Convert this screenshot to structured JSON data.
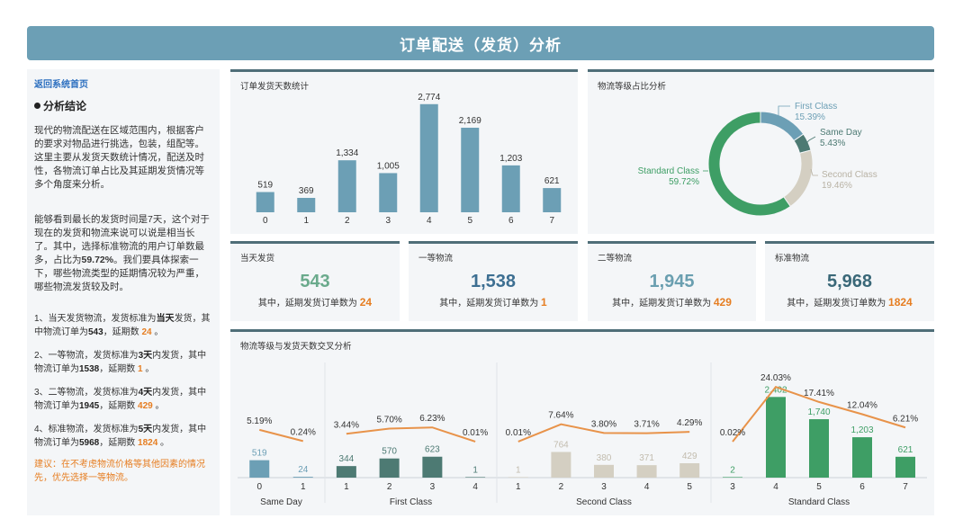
{
  "header": {
    "title": "订单配送（发货）分析"
  },
  "left": {
    "home_link": "返回系统首页",
    "section_title": "分析结论",
    "para1": "现代的物流配送在区域范围内，根据客户的要求对物品进行挑选，包装，组配等。这里主要从发货天数统计情况，配送及时性，各物流订单占比及其延期发货情况等多个角度来分析。",
    "para2_a": "能够看到最长的发货时间是7天，这个对于现在的发货和物流来说可以说是相当长了。其中，选择标准物流的用户订单数最多，占比为",
    "para2_pct": "59.72%",
    "para2_b": "。我们要具体探索一下，哪些物流类型的延期情况较为严重，哪些物流发货较及时。",
    "items": [
      {
        "a": "1、当天发货物流，发货标准为",
        "b": "当天",
        "c": "发货，其中物流订单为",
        "d": "543",
        "e": "，延期数 ",
        "f": "24",
        "g": " 。"
      },
      {
        "a": "2、一等物流，发货标准为",
        "b": "3天",
        "c": "内发货，其中物流订单为",
        "d": "1538",
        "e": "，延期数 ",
        "f": "1",
        "g": " 。"
      },
      {
        "a": "3、二等物流，发货标准为",
        "b": "4天",
        "c": "内发货，其中物流订单为",
        "d": "1945",
        "e": "，延期数 ",
        "f": "429",
        "g": " 。"
      },
      {
        "a": "4、标准物流，发货标准为",
        "b": "5天",
        "c": "内发货，其中物流订单为",
        "d": "5968",
        "e": "，延期数 ",
        "f": "1824",
        "g": " 。"
      }
    ],
    "advice": "建议：在不考虑物流价格等其他因素的情况先，优先选择一等物流。"
  },
  "bar_card": {
    "title": "订单发货天数统计"
  },
  "pie_card": {
    "title": "物流等级占比分析"
  },
  "kpis": [
    {
      "title": "当天发货",
      "value": "543",
      "sub": "其中，延期发货订单数为 ",
      "delay": "24",
      "value_color": "#6aaa8c"
    },
    {
      "title": "一等物流",
      "value": "1,538",
      "sub": "其中，延期发货订单数为 ",
      "delay": "1",
      "value_color": "#3d6f92"
    },
    {
      "title": "二等物流",
      "value": "1,945",
      "sub": "其中，延期发货订单数为 ",
      "delay": "429",
      "value_color": "#6a9fb0"
    },
    {
      "title": "标准物流",
      "value": "5,968",
      "sub": "其中，延期发货订单数为 ",
      "delay": "1824",
      "value_color": "#3a6878"
    }
  ],
  "cross_card": {
    "title": "物流等级与发货天数交叉分析"
  },
  "colors": {
    "bar": "#6c9fb5",
    "line": "#e8934a",
    "same_day": "#6c9fb5",
    "first_class": "#4d7a73",
    "second_class": "#d4cfc2",
    "standard_class": "#3e9e65",
    "delay": "#e67e22"
  },
  "chart_data": [
    {
      "type": "bar",
      "title": "订单发货天数统计",
      "categories": [
        "0",
        "1",
        "2",
        "3",
        "4",
        "5",
        "6",
        "7"
      ],
      "values": [
        519,
        369,
        1334,
        1005,
        2774,
        2169,
        1203,
        621
      ],
      "labels": [
        "519",
        "369",
        "1,334",
        "1,005",
        "2,774",
        "2,169",
        "1,203",
        "621"
      ],
      "ylim": [
        0,
        3000
      ]
    },
    {
      "type": "pie",
      "title": "物流等级占比分析",
      "donut": true,
      "slices": [
        {
          "name": "First Class",
          "pct": "15.39%",
          "value": 15.39,
          "color": "#6c9fb5",
          "label_color": "#6c9fb5"
        },
        {
          "name": "Same Day",
          "pct": "5.43%",
          "value": 5.43,
          "color": "#4d7a73",
          "label_color": "#4d7a73"
        },
        {
          "name": "Second Class",
          "pct": "19.46%",
          "value": 19.46,
          "color": "#d4cfc2",
          "label_color": "#b8b2a4"
        },
        {
          "name": "Standard Class",
          "pct": "59.72%",
          "value": 59.72,
          "color": "#3e9e65",
          "label_color": "#3e9e65"
        }
      ]
    },
    {
      "type": "bar",
      "title": "物流等级与发货天数交叉分析",
      "combo": "bar+line",
      "ylim": [
        0,
        3000
      ],
      "line_ylim": [
        0,
        0.3
      ],
      "groups": [
        {
          "name": "Same Day",
          "color": "#6c9fb5",
          "x": [
            "0",
            "1"
          ],
          "values": [
            519,
            24
          ],
          "labels": [
            "519",
            "24"
          ],
          "rates": [
            5.19,
            0.24
          ],
          "rate_labels": [
            "5.19%",
            "0.24%"
          ]
        },
        {
          "name": "First Class",
          "color": "#4d7a73",
          "x": [
            "1",
            "2",
            "3",
            "4"
          ],
          "values": [
            344,
            570,
            623,
            1
          ],
          "labels": [
            "344",
            "570",
            "623",
            "1"
          ],
          "rates": [
            3.44,
            5.7,
            6.23,
            0.01
          ],
          "rate_labels": [
            "3.44%",
            "5.70%",
            "6.23%",
            "0.01%"
          ]
        },
        {
          "name": "Second Class",
          "color": "#d4cfc2",
          "x": [
            "1",
            "2",
            "3",
            "4",
            "5"
          ],
          "values": [
            1,
            764,
            380,
            371,
            429
          ],
          "labels": [
            "1",
            "764",
            "380",
            "371",
            "429"
          ],
          "rates": [
            0.01,
            7.64,
            3.8,
            3.71,
            4.29
          ],
          "rate_labels": [
            "0.01%",
            "7.64%",
            "3.80%",
            "3.71%",
            "4.29%"
          ]
        },
        {
          "name": "Standard Class",
          "color": "#3e9e65",
          "x": [
            "3",
            "4",
            "5",
            "6",
            "7"
          ],
          "values": [
            2,
            2402,
            1740,
            1203,
            621
          ],
          "labels": [
            "2",
            "2,402",
            "1,740",
            "1,203",
            "621"
          ],
          "rates": [
            0.02,
            24.03,
            17.41,
            12.04,
            6.21
          ],
          "rate_labels": [
            "0.02%",
            "24.03%",
            "17.41%",
            "12.04%",
            "6.21%"
          ]
        }
      ]
    }
  ]
}
